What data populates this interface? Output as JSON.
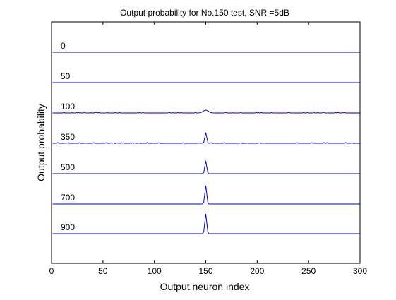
{
  "chart_data": {
    "type": "line",
    "title": "Output probability for No.150 test, SNR =5dB",
    "xlabel": "Output neuron index",
    "ylabel": "Output probability",
    "xlim": [
      0,
      300
    ],
    "xticks": [
      "0",
      "50",
      "100",
      "150",
      "200",
      "250",
      "300"
    ],
    "grid": false,
    "line_color": "#0000cc",
    "series": [
      {
        "name": "0",
        "peak_x": 150,
        "peak_height": 0.0,
        "noise": 0.0
      },
      {
        "name": "50",
        "peak_x": 150,
        "peak_height": 0.0,
        "noise": 0.0
      },
      {
        "name": "100",
        "peak_x": 150,
        "peak_height": 0.1,
        "noise": 0.03
      },
      {
        "name": "350",
        "peak_x": 150,
        "peak_height": 0.38,
        "noise": 0.03
      },
      {
        "name": "500",
        "peak_x": 150,
        "peak_height": 0.45,
        "noise": 0.0
      },
      {
        "name": "700",
        "peak_x": 150,
        "peak_height": 0.65,
        "noise": 0.0
      },
      {
        "name": "900",
        "peak_x": 150,
        "peak_height": 0.7,
        "noise": 0.0
      }
    ]
  }
}
